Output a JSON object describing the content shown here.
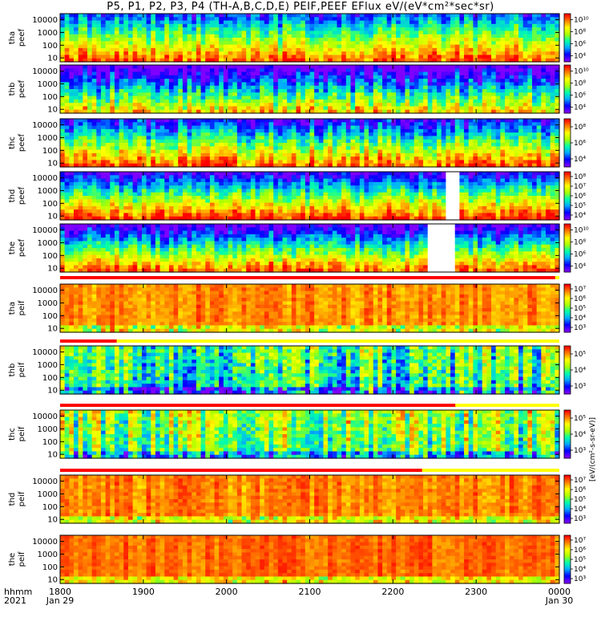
{
  "title": "P5, P1, P2, P3, P4 (TH-A,B,C,D,E) PEIF,PEEF EFlux eV/(eV*cm²*sec*sr)",
  "x_axis": {
    "row_label_1": "hhmm",
    "row_label_2": "2021",
    "tick_labels": [
      "1800",
      "1900",
      "2000",
      "2100",
      "2200",
      "2300",
      "0000"
    ],
    "date_labels": [
      "Jan 29",
      "Jan 30"
    ]
  },
  "units_label": "[eV/(cm²-s-sr-eV)]",
  "colors": {
    "spectrogram_scale": [
      "#7f00ff",
      "#0000ff",
      "#00aaff",
      "#00ffaa",
      "#aaff00",
      "#ffff00",
      "#ff8000",
      "#ff0000"
    ],
    "missing_data": "#ffffff",
    "bar_red": "#ff0000",
    "bar_yellow": "#ffff00"
  },
  "chart_data": {
    "type": "heatmap",
    "x_range_hours": [
      18,
      24
    ],
    "y_scale": "log",
    "y_tick_labels": [
      "10",
      "100",
      "1000",
      "10000"
    ],
    "panels": [
      {
        "name": "tha peef",
        "line1": "tha",
        "line2": "peef",
        "ylim": [
          5,
          30000
        ],
        "colorbar_ticks": [
          "10⁴",
          "10⁶",
          "10⁸",
          "10¹⁰"
        ],
        "base": 0.55,
        "gradient": -0.35,
        "variability": 0.18,
        "white_from": null,
        "white_to": null,
        "seed": 3
      },
      {
        "name": "thb peef",
        "line1": "thb",
        "line2": "peef",
        "ylim": [
          5,
          30000
        ],
        "colorbar_ticks": [
          "10⁴",
          "10⁶",
          "10⁸",
          "10¹⁰"
        ],
        "base": 0.35,
        "gradient": -0.4,
        "variability": 0.22,
        "white_from": null,
        "white_to": null,
        "seed": 7
      },
      {
        "name": "thc peef",
        "line1": "thc",
        "line2": "peef",
        "ylim": [
          5,
          30000
        ],
        "colorbar_ticks": [
          "10⁴",
          "10⁶",
          "10⁸"
        ],
        "base": 0.5,
        "gradient": -0.4,
        "variability": 0.2,
        "white_from": null,
        "white_to": null,
        "seed": 11
      },
      {
        "name": "thd peef",
        "line1": "thd",
        "line2": "peef",
        "ylim": [
          5,
          30000
        ],
        "colorbar_ticks": [
          "10⁴",
          "10⁵",
          "10⁶",
          "10⁷",
          "10⁸"
        ],
        "base": 0.5,
        "gradient": -0.45,
        "variability": 0.18,
        "white_from": 22.62,
        "white_to": 22.78,
        "seed": 13
      },
      {
        "name": "the peef",
        "line1": "the",
        "line2": "peef",
        "ylim": [
          5,
          30000
        ],
        "colorbar_ticks": [
          "10⁴",
          "10⁶",
          "10⁸",
          "10¹⁰"
        ],
        "base": 0.45,
        "gradient": -0.45,
        "variability": 0.18,
        "white_from": 22.42,
        "white_to": 22.72,
        "seed": 17
      },
      {
        "name": "tha peif",
        "line1": "tha",
        "line2": "peif",
        "ylim": [
          5,
          30000
        ],
        "colorbar_ticks": [
          "10³",
          "10⁴",
          "10⁵",
          "10⁶",
          "10⁷"
        ],
        "base": 0.85,
        "gradient": 0.0,
        "variability": 0.1,
        "white_from": null,
        "white_to": null,
        "seed": 19
      },
      {
        "name": "thb peif",
        "line1": "thb",
        "line2": "peif",
        "ylim": [
          5,
          30000
        ],
        "colorbar_ticks": [
          "10³",
          "10⁴",
          "10⁵"
        ],
        "base": 0.45,
        "gradient": 0.05,
        "variability": 0.3,
        "white_from": null,
        "white_to": null,
        "seed": 23
      },
      {
        "name": "thc peif",
        "line1": "thc",
        "line2": "peif",
        "ylim": [
          5,
          30000
        ],
        "colorbar_ticks": [
          "10³",
          "10⁴",
          "10⁵"
        ],
        "base": 0.55,
        "gradient": 0.05,
        "variability": 0.28,
        "white_from": null,
        "white_to": null,
        "seed": 29
      },
      {
        "name": "thd peif",
        "line1": "thd",
        "line2": "peif",
        "ylim": [
          5,
          30000
        ],
        "colorbar_ticks": [
          "10³",
          "10⁴",
          "10⁵",
          "10⁶",
          "10⁷"
        ],
        "base": 0.85,
        "gradient": 0.0,
        "variability": 0.1,
        "white_from": null,
        "white_to": null,
        "seed": 31
      },
      {
        "name": "the peif",
        "line1": "the",
        "line2": "peif",
        "ylim": [
          5,
          30000
        ],
        "colorbar_ticks": [
          "10³",
          "10⁴",
          "10⁵",
          "10⁶",
          "10⁷"
        ],
        "base": 0.88,
        "gradient": 0.0,
        "variability": 0.08,
        "white_from": null,
        "white_to": null,
        "seed": 37
      }
    ],
    "mode_bars": [
      {
        "after_panel": 5,
        "red_to_hour": 23.95
      },
      {
        "after_panel": 6,
        "red_to_hour": 18.68
      },
      {
        "after_panel": 8,
        "red_to_hour": 22.75
      },
      {
        "after_panel": 9,
        "red_to_hour": 22.35
      }
    ]
  }
}
